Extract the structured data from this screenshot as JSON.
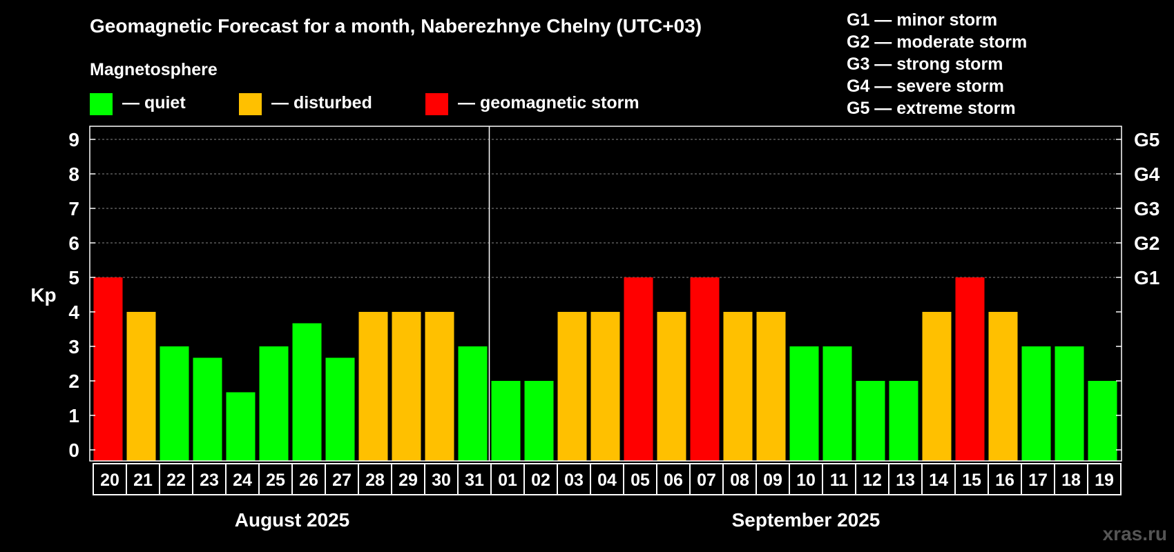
{
  "colors": {
    "background": "#000000",
    "quiet": "#00ff00",
    "disturbed": "#ffc000",
    "storm": "#ff0000",
    "text": "#ffffff",
    "watermark": "#555555"
  },
  "chart_data": {
    "type": "bar",
    "title": "Geomagnetic Forecast for a month, Naberezhnye Chelny (UTC+03)",
    "ylabel": "Kp",
    "ylim": [
      0,
      9
    ],
    "yticks": [
      "0",
      "1",
      "2",
      "3",
      "4",
      "5",
      "6",
      "7",
      "8",
      "9"
    ],
    "right_axis_labels": [
      {
        "kp": 5,
        "label": "G1"
      },
      {
        "kp": 6,
        "label": "G2"
      },
      {
        "kp": 7,
        "label": "G3"
      },
      {
        "kp": 8,
        "label": "G4"
      },
      {
        "kp": 9,
        "label": "G5"
      }
    ],
    "legend_title": "Magnetosphere",
    "legend": [
      {
        "key": "quiet",
        "label": "— quiet"
      },
      {
        "key": "disturbed",
        "label": "— disturbed"
      },
      {
        "key": "storm",
        "label": "— geomagnetic storm"
      }
    ],
    "storm_scale": [
      "G1 — minor storm",
      "G2 — moderate storm",
      "G3 — strong storm",
      "G4 — severe storm",
      "G5 — extreme storm"
    ],
    "months": [
      {
        "label": "August 2025",
        "days": 12
      },
      {
        "label": "September 2025",
        "days": 19
      }
    ],
    "categories": [
      "20",
      "21",
      "22",
      "23",
      "24",
      "25",
      "26",
      "27",
      "28",
      "29",
      "30",
      "31",
      "01",
      "02",
      "03",
      "04",
      "05",
      "06",
      "07",
      "08",
      "09",
      "10",
      "11",
      "12",
      "13",
      "14",
      "15",
      "16",
      "17",
      "18",
      "19"
    ],
    "values": [
      5,
      4,
      3,
      2.67,
      1.67,
      3,
      3.67,
      2.67,
      4,
      4,
      4,
      3,
      2,
      2,
      4,
      4,
      5,
      4,
      5,
      4,
      4,
      3,
      3,
      2,
      2,
      4,
      5,
      4,
      3,
      3,
      2
    ],
    "status": [
      "storm",
      "disturbed",
      "quiet",
      "quiet",
      "quiet",
      "quiet",
      "quiet",
      "quiet",
      "disturbed",
      "disturbed",
      "disturbed",
      "quiet",
      "quiet",
      "quiet",
      "disturbed",
      "disturbed",
      "storm",
      "disturbed",
      "storm",
      "disturbed",
      "disturbed",
      "quiet",
      "quiet",
      "quiet",
      "quiet",
      "disturbed",
      "storm",
      "disturbed",
      "quiet",
      "quiet",
      "quiet"
    ]
  },
  "watermark": "xras.ru"
}
